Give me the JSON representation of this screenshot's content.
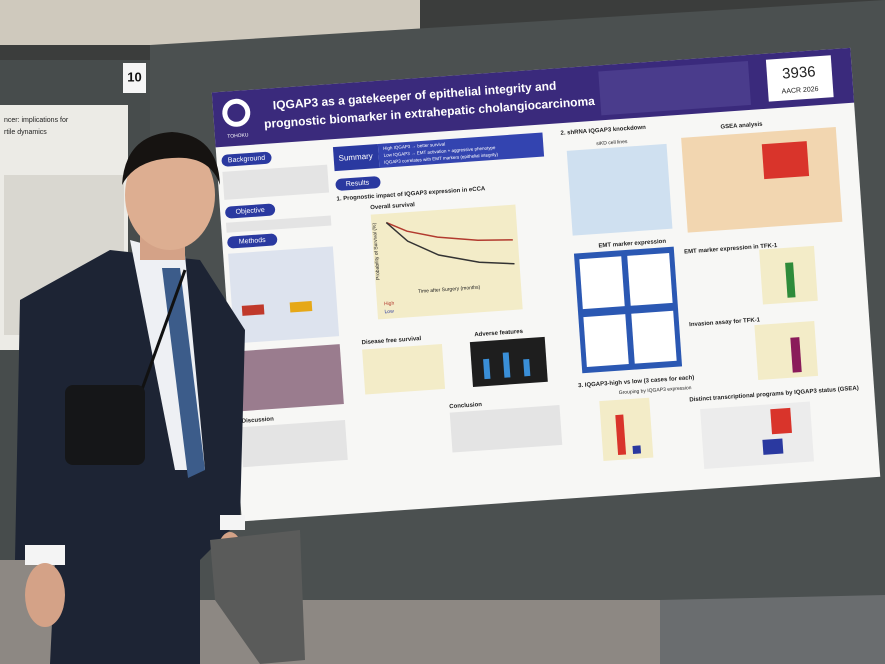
{
  "board_number": "10",
  "left_poster": {
    "title_line_1": "ncer: implications for",
    "title_line_2": "rtile dynamics"
  },
  "poster": {
    "institution": "TOHOKU",
    "title_line_1": "IQGAP3 as a gatekeeper of epithelial integrity and",
    "title_line_2": "prognostic biomarker in extrahepatic cholangiocarcinoma",
    "poster_number": "3936",
    "conference": "AACR 2026",
    "sections": {
      "background": "Background",
      "objective": "Objective",
      "methods": "Methods",
      "summary": "Summary",
      "results": "Results",
      "discussion": "Discussion",
      "conclusion": "Conclusion"
    },
    "summary_points": [
      "High IQGAP3 → better survival",
      "Low IQGAP3 → EMT activation + aggressive phenotype",
      "IQGAP3 correlates with EMT markers (epithelial integrity)"
    ],
    "results": {
      "part_1": "1. Prognostic impact of IQGAP3 expression in eCCA",
      "overall_survival": "Overall survival",
      "disease_free_survival": "Disease free survival",
      "adverse_features": "Adverse features",
      "part_2": "2. shRNA IQGAP3 knockdown",
      "sikd": "siKD cell lines",
      "gsea": "GSEA analysis",
      "emt": "EMT marker expression",
      "emt_tfk1": "EMT marker expression in TFK-1",
      "invasion": "Invasion assay for TFK-1",
      "part_3": "3. IQGAP3-high vs low (3 cases for each)",
      "grouping": "Grouping by IQGAP3 expression",
      "distinct": "Distinct transcriptional programs by IQGAP3 status (GSEA)",
      "time_axis": "Time after Surgery (months)",
      "y_axis": "Probability of Survival (%)",
      "high_label": "High",
      "low_label": "Low"
    }
  }
}
